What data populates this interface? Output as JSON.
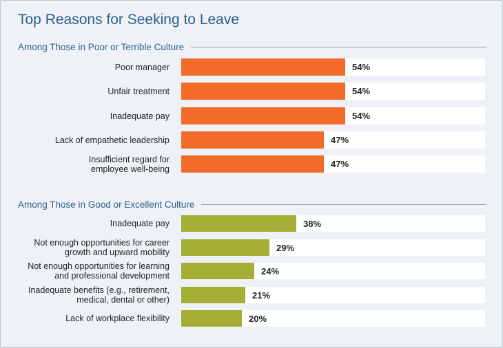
{
  "title": "Top Reasons for Seeking to Leave",
  "colors": {
    "series1": "#f26b2a",
    "series2": "#a6ad35",
    "title": "#2d5f8c"
  },
  "chart_data": [
    {
      "type": "bar",
      "orientation": "horizontal",
      "title": "Among Those in Poor or Terrible Culture",
      "categories": [
        "Poor manager",
        "Unfair treatment",
        "Inadequate pay",
        "Lack of empathetic leadership",
        "Insufficient regard for\nemployee well-being"
      ],
      "values": [
        54,
        54,
        54,
        47,
        47
      ],
      "value_labels": [
        "54%",
        "54%",
        "54%",
        "47%",
        "47%"
      ],
      "xlim": [
        0,
        100
      ],
      "grid": false
    },
    {
      "type": "bar",
      "orientation": "horizontal",
      "title": "Among Those in Good or Excellent Culture",
      "categories": [
        "Inadequate pay",
        "Not enough opportunities for career\ngrowth and upward mobility",
        "Not enough opportunities for learning\nand professional development",
        "Inadequate benefits (e.g., retirement,\nmedical, dental or other)",
        "Lack of workplace flexibility"
      ],
      "values": [
        38,
        29,
        24,
        21,
        20
      ],
      "value_labels": [
        "38%",
        "29%",
        "24%",
        "21%",
        "20%"
      ],
      "xlim": [
        0,
        100
      ],
      "grid": false
    }
  ]
}
